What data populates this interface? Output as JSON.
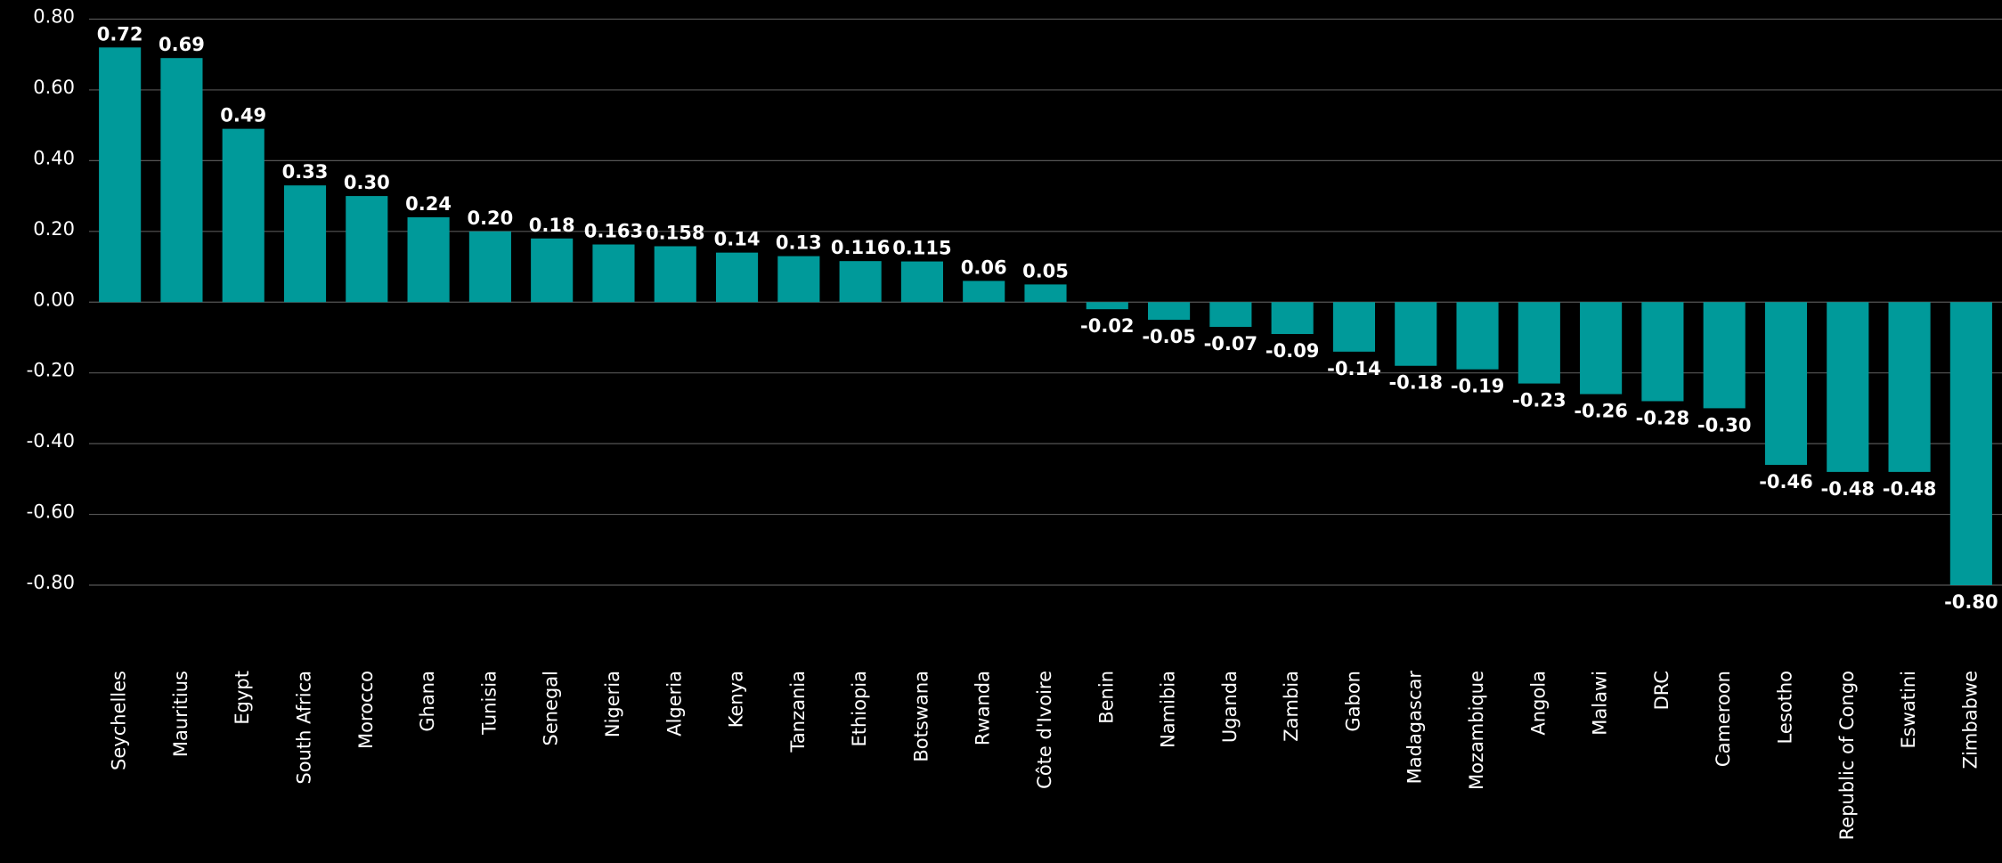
{
  "chart_data": {
    "type": "bar",
    "categories": [
      "Seychelles",
      "Mauritius",
      "Egypt",
      "South Africa",
      "Morocco",
      "Ghana",
      "Tunisia",
      "Senegal",
      "Nigeria",
      "Algeria",
      "Kenya",
      "Tanzania",
      "Ethiopia",
      "Botswana",
      "Rwanda",
      "Côte d'Ivoire",
      "Benin",
      "Namibia",
      "Uganda",
      "Zambia",
      "Gabon",
      "Madagascar",
      "Mozambique",
      "Angola",
      "Malawi",
      "DRC",
      "Cameroon",
      "Lesotho",
      "Republic of Congo",
      "Eswatini",
      "Zimbabwe"
    ],
    "values": [
      0.72,
      0.69,
      0.49,
      0.33,
      0.3,
      0.24,
      0.2,
      0.18,
      0.163,
      0.158,
      0.14,
      0.13,
      0.116,
      0.115,
      0.06,
      0.05,
      -0.02,
      -0.05,
      -0.07,
      -0.09,
      -0.14,
      -0.18,
      -0.19,
      -0.23,
      -0.26,
      -0.28,
      -0.3,
      -0.46,
      -0.48,
      -0.48,
      -0.8
    ],
    "value_labels": [
      "0.72",
      "0.69",
      "0.49",
      "0.33",
      "0.30",
      "0.24",
      "0.20",
      "0.18",
      "0.163",
      "0.158",
      "0.14",
      "0.13",
      "0.116",
      "0.115",
      "0.06",
      "0.05",
      "-0.02",
      "-0.05",
      "-0.07",
      "-0.09",
      "-0.14",
      "-0.18",
      "-0.19",
      "-0.23",
      "-0.26",
      "-0.28",
      "-0.30",
      "-0.46",
      "-0.48",
      "-0.48",
      "-0.80"
    ],
    "color": "#009a9a",
    "ylim": [
      -0.8,
      0.8
    ],
    "yticks": [
      {
        "value": 0.8,
        "label": "0.80"
      },
      {
        "value": 0.6,
        "label": "0.60"
      },
      {
        "value": 0.4,
        "label": "0.40"
      },
      {
        "value": 0.2,
        "label": "0.20"
      },
      {
        "value": 0,
        "label": "0.00"
      },
      {
        "value": -0.2,
        "label": "-0.20"
      },
      {
        "value": -0.4,
        "label": "-0.40"
      },
      {
        "value": -0.6,
        "label": "-0.60"
      },
      {
        "value": -0.8,
        "label": "-0.80"
      }
    ],
    "grid": true
  }
}
